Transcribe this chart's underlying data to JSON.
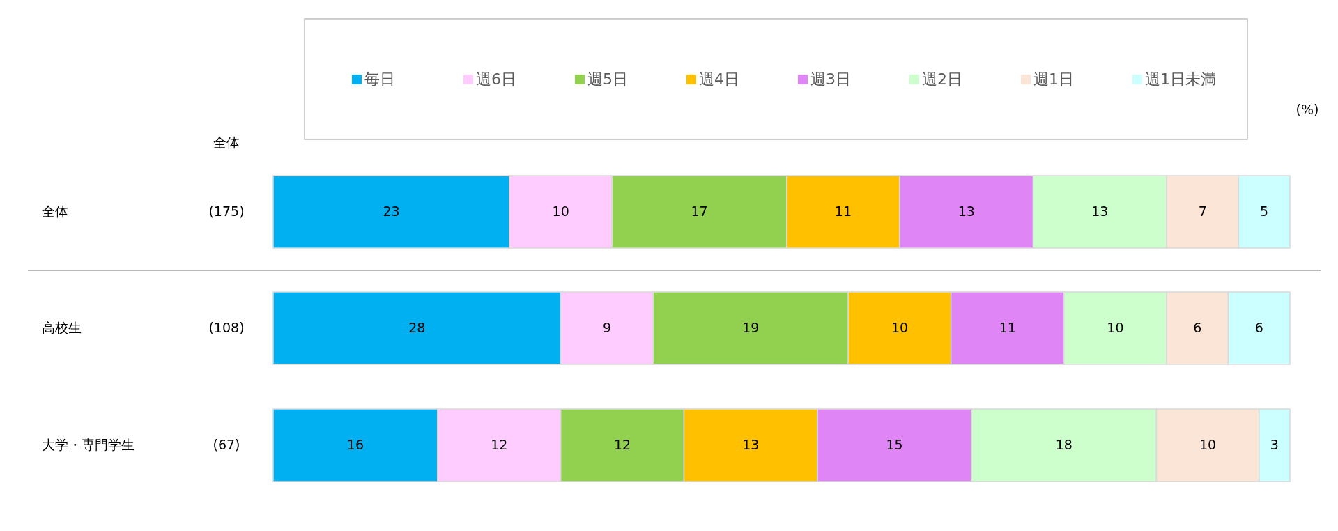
{
  "chart_data": {
    "type": "bar",
    "orientation": "horizontal",
    "stacked": true,
    "data_labels": true,
    "legend": "top",
    "categories": [
      "全体",
      "高校生",
      "大学・専門学生"
    ],
    "series": [
      {
        "name": "毎日",
        "color": "#00b0f0",
        "values": [
          23,
          28,
          16
        ]
      },
      {
        "name": "週6日",
        "color": "#ffccff",
        "values": [
          10,
          9,
          12
        ]
      },
      {
        "name": "週5日",
        "color": "#92d050",
        "values": [
          17,
          19,
          12
        ]
      },
      {
        "name": "週4日",
        "color": "#ffc000",
        "values": [
          11,
          10,
          13
        ]
      },
      {
        "name": "週3日",
        "color": "#e085f5",
        "values": [
          13,
          11,
          15
        ]
      },
      {
        "name": "週2日",
        "color": "#ccffcc",
        "values": [
          13,
          10,
          18
        ]
      },
      {
        "name": "週1日",
        "color": "#fbe5d6",
        "values": [
          7,
          6,
          10
        ]
      },
      {
        "name": "週1日未満",
        "color": "#ccffff",
        "values": [
          5,
          6,
          3
        ]
      }
    ],
    "annotations": [
      "全体",
      "(%)",
      "(175)",
      "(108)",
      "(67)"
    ]
  }
}
